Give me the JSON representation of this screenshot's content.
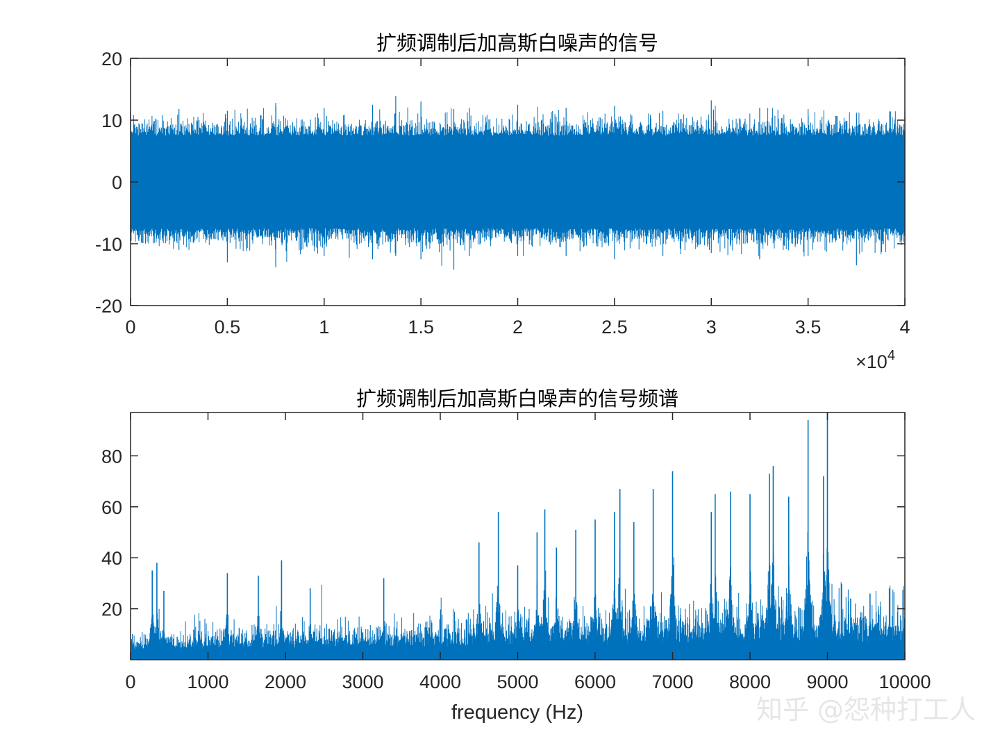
{
  "watermark": "知乎 @怨种打工人",
  "chart_data": [
    {
      "type": "line",
      "title": "扩频调制后加高斯白噪声的信号",
      "xlabel": "",
      "ylabel": "",
      "xlim": [
        0,
        40000
      ],
      "ylim": [
        -20,
        20
      ],
      "xticks": [
        0,
        5000,
        10000,
        15000,
        20000,
        25000,
        30000,
        35000,
        40000
      ],
      "xtick_labels": [
        "0",
        "0.5",
        "1",
        "1.5",
        "2",
        "2.5",
        "3",
        "3.5",
        "4"
      ],
      "x_exponent_label": "×10",
      "x_exponent_power": "4",
      "yticks": [
        -20,
        -10,
        0,
        10,
        20
      ],
      "ytick_labels": [
        "-20",
        "-10",
        "0",
        "10",
        "20"
      ],
      "color": "#0072BD",
      "grid": false,
      "series": [
        {
          "envelope_x": [
            0,
            2500,
            5000,
            7500,
            10000,
            12500,
            13700,
            15000,
            16700,
            17500,
            20000,
            22500,
            25000,
            27500,
            30000,
            32500,
            35000,
            37500,
            40000
          ],
          "envelope_max": [
            11.5,
            11.8,
            11.5,
            12.8,
            12.0,
            12.5,
            13.9,
            13.0,
            11.8,
            12.0,
            12.5,
            12.0,
            12.3,
            11.5,
            13.2,
            12.0,
            11.8,
            11.2,
            11.5
          ],
          "envelope_min": [
            -9.5,
            -11.0,
            -13.0,
            -13.8,
            -12.0,
            -12.5,
            -12.0,
            -12.5,
            -14.2,
            -12.0,
            -12.0,
            -12.0,
            -12.5,
            -12.0,
            -11.5,
            -12.5,
            -12.0,
            -13.5,
            -10.0
          ],
          "typical_amplitude": 7.5
        }
      ]
    },
    {
      "type": "line",
      "title": "扩频调制后加高斯白噪声的信号频谱",
      "xlabel": "frequency (Hz)",
      "ylabel": "",
      "xlim": [
        0,
        10000
      ],
      "ylim": [
        0,
        97
      ],
      "xticks": [
        0,
        1000,
        2000,
        3000,
        4000,
        5000,
        6000,
        7000,
        8000,
        9000,
        10000
      ],
      "xtick_labels": [
        "0",
        "1000",
        "2000",
        "3000",
        "4000",
        "5000",
        "6000",
        "7000",
        "8000",
        "9000",
        "10000"
      ],
      "yticks": [
        20,
        40,
        60,
        80
      ],
      "ytick_labels": [
        "20",
        "40",
        "60",
        "80"
      ],
      "color": "#0072BD",
      "grid": false,
      "series": [
        {
          "peaks": [
            {
              "x": 280,
              "y": 35
            },
            {
              "x": 340,
              "y": 38
            },
            {
              "x": 430,
              "y": 27
            },
            {
              "x": 1250,
              "y": 34
            },
            {
              "x": 1650,
              "y": 33
            },
            {
              "x": 1950,
              "y": 39
            },
            {
              "x": 2320,
              "y": 28
            },
            {
              "x": 3270,
              "y": 32
            },
            {
              "x": 4500,
              "y": 46
            },
            {
              "x": 4750,
              "y": 58
            },
            {
              "x": 5000,
              "y": 37
            },
            {
              "x": 5250,
              "y": 50
            },
            {
              "x": 5350,
              "y": 59
            },
            {
              "x": 5500,
              "y": 44
            },
            {
              "x": 5750,
              "y": 51
            },
            {
              "x": 6000,
              "y": 55
            },
            {
              "x": 6250,
              "y": 58
            },
            {
              "x": 6320,
              "y": 67
            },
            {
              "x": 6500,
              "y": 54
            },
            {
              "x": 6750,
              "y": 67
            },
            {
              "x": 7000,
              "y": 74
            },
            {
              "x": 7500,
              "y": 58
            },
            {
              "x": 7550,
              "y": 65
            },
            {
              "x": 7750,
              "y": 66
            },
            {
              "x": 8000,
              "y": 65
            },
            {
              "x": 8250,
              "y": 73
            },
            {
              "x": 8300,
              "y": 76
            },
            {
              "x": 8500,
              "y": 64
            },
            {
              "x": 8750,
              "y": 94
            },
            {
              "x": 8950,
              "y": 72
            },
            {
              "x": 9000,
              "y": 97
            },
            {
              "x": 9300,
              "y": 24
            },
            {
              "x": 9550,
              "y": 26
            },
            {
              "x": 9800,
              "y": 28
            }
          ]
        }
      ]
    }
  ]
}
